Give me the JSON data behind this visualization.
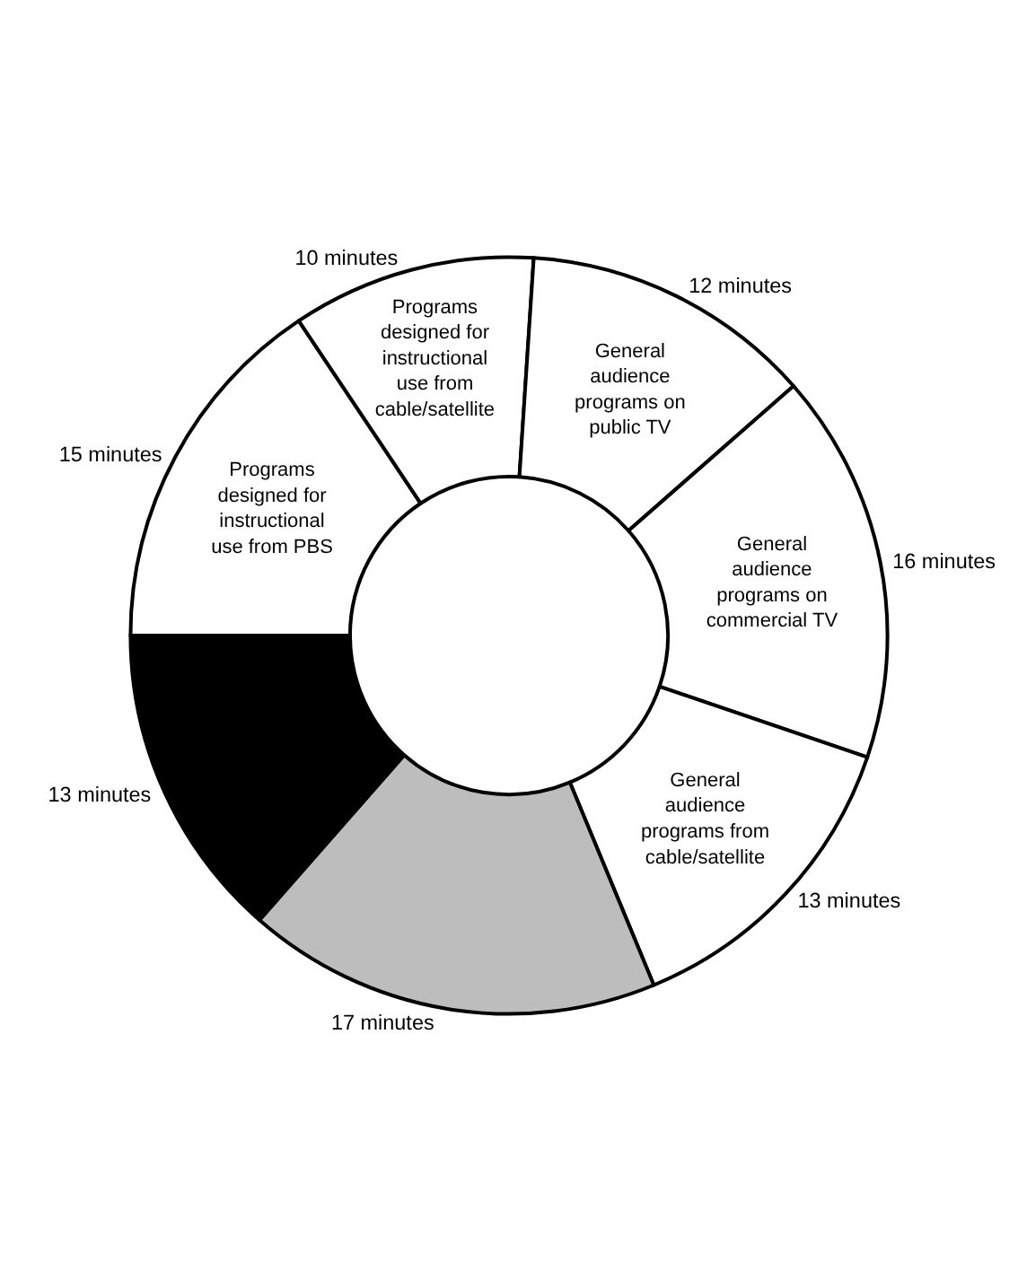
{
  "chart_data": {
    "type": "donut",
    "categories": [
      "Programs designed for instructional use from PBS",
      "Programs designed for instructional use from cable/satellite",
      "General audience programs on public TV",
      "General audience programs on commercial TV",
      "General audience programs from cable/satellite",
      null,
      null
    ],
    "values": [
      15,
      10,
      12,
      16,
      13,
      17,
      13
    ],
    "value_labels": [
      "15 minutes",
      "10 minutes",
      "12 minutes",
      "16 minutes",
      "13 minutes",
      "17 minutes",
      "13 minutes"
    ],
    "colors": [
      "#ffffff",
      "#ffffff",
      "#ffffff",
      "#ffffff",
      "#ffffff",
      "#bdbdbd",
      "#000000"
    ],
    "legend": false
  }
}
